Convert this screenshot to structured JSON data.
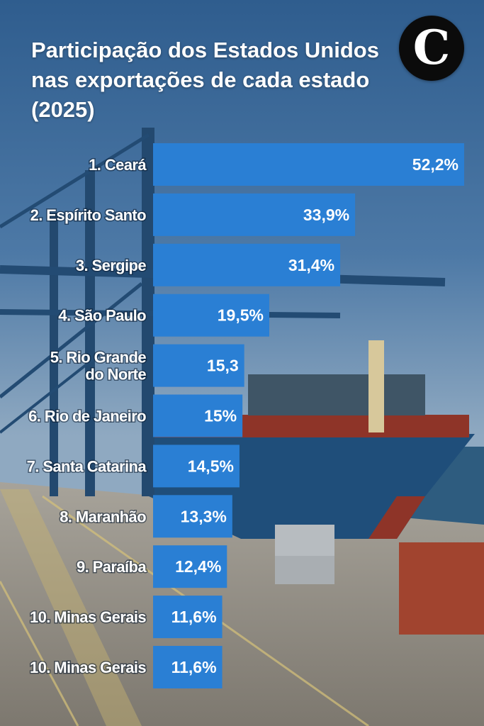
{
  "header": {
    "title_lines": [
      "Participação dos Estados Unidos",
      "nas exportações de cada estado",
      "(2025)"
    ],
    "logo_letter": "C"
  },
  "colors": {
    "bar": "#2a7fd4",
    "text": "#ffffff",
    "logo_bg": "#0b0b0b"
  },
  "chart_data": {
    "type": "bar",
    "orientation": "horizontal",
    "title": "Participação dos Estados Unidos nas exportações de cada estado (2025)",
    "unit": "%",
    "xlim": [
      0,
      55
    ],
    "categories": [
      [
        "1. Ceará"
      ],
      [
        "2. Espírito Santo"
      ],
      [
        "3. Sergipe"
      ],
      [
        "4. São Paulo"
      ],
      [
        "5. Rio Grande",
        "do Norte"
      ],
      [
        "6. Rio de Janeiro"
      ],
      [
        "7. Santa Catarina"
      ],
      [
        "8. Maranhão"
      ],
      [
        "9. Paraíba"
      ],
      [
        "10. Minas Gerais"
      ],
      [
        "10. Minas Gerais"
      ]
    ],
    "values": [
      52.2,
      33.9,
      31.4,
      19.5,
      15.3,
      15,
      14.5,
      13.3,
      12.4,
      11.6,
      11.6
    ],
    "value_labels": [
      "52,2%",
      "33,9%",
      "31,4%",
      "19,5%",
      "15,3",
      "15%",
      "14,5%",
      "13,3%",
      "12,4%",
      "11,6%",
      "11,6%"
    ]
  }
}
